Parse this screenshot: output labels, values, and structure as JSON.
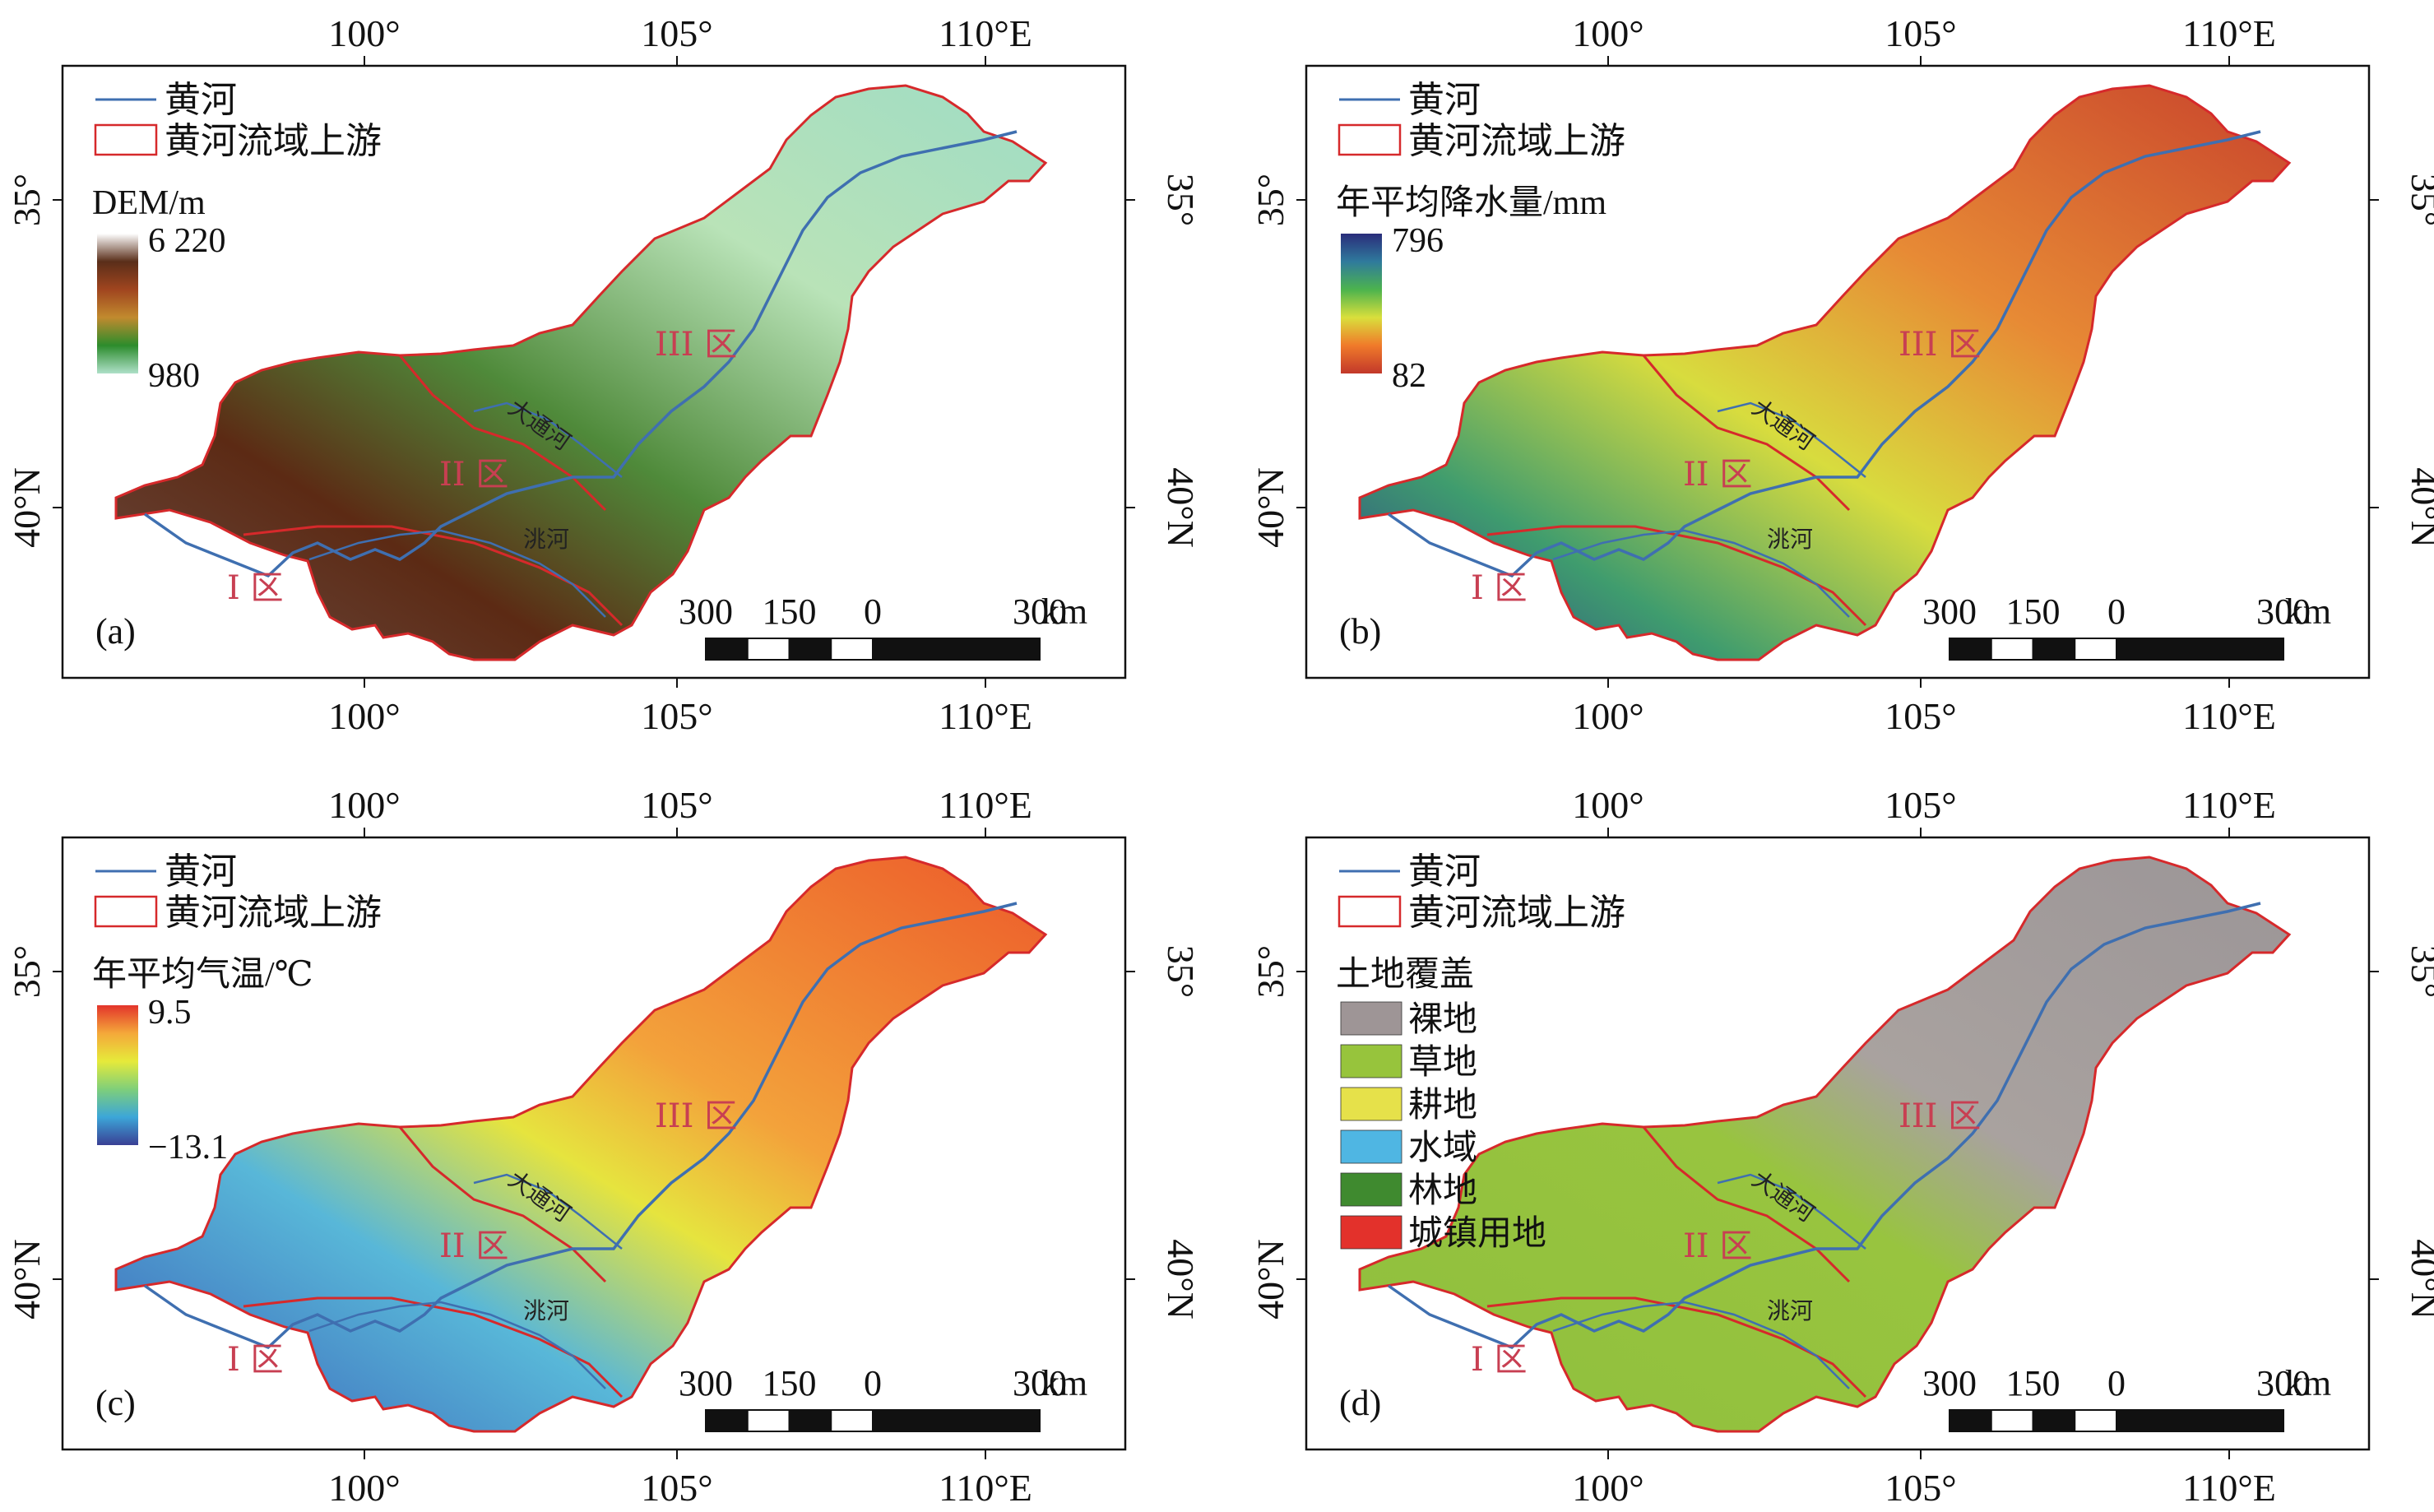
{
  "figure": {
    "axes": {
      "x_ticks": [
        "100°",
        "105°",
        "110°E"
      ],
      "y_ticks": [
        "35°",
        "40°N"
      ]
    },
    "panels": [
      {
        "id": "a",
        "label": "(a)",
        "legend": {
          "river": "黄河",
          "basin": "黄河流域上游"
        },
        "colorbar": {
          "title": "DEM/m",
          "max": "6 220",
          "min": "980",
          "colors": [
            "#ffffff",
            "#5a2e19",
            "#a0451f",
            "#c18a2e",
            "#2c8c2c",
            "#aee0c8"
          ]
        },
        "regions": [
          "I 区",
          "II 区",
          "III 区"
        ],
        "rivers": [
          "大通河",
          "洮河"
        ],
        "scale": {
          "labels": [
            "300",
            "150",
            "0",
            "300"
          ],
          "unit": "km"
        }
      },
      {
        "id": "b",
        "label": "(b)",
        "legend": {
          "river": "黄河",
          "basin": "黄河流域上游"
        },
        "colorbar": {
          "title": "年平均降水量/mm",
          "max": "796",
          "min": "82",
          "colors": [
            "#2a2d7a",
            "#2f7a9c",
            "#4cb34e",
            "#d9df3c",
            "#f07a2a",
            "#c2382a"
          ]
        },
        "regions": [
          "I 区",
          "II 区",
          "III 区"
        ],
        "rivers": [
          "大通河",
          "洮河"
        ],
        "scale": {
          "labels": [
            "300",
            "150",
            "0",
            "300"
          ],
          "unit": "km"
        }
      },
      {
        "id": "c",
        "label": "(c)",
        "legend": {
          "river": "黄河",
          "basin": "黄河流域上游"
        },
        "colorbar": {
          "title": "年平均气温/℃",
          "max": "9.5",
          "min": "−13.1",
          "colors": [
            "#e3342b",
            "#f4a83a",
            "#e6ea3a",
            "#7fcf7a",
            "#3ca6d8",
            "#3a3f94"
          ]
        },
        "regions": [
          "I 区",
          "II 区",
          "III 区"
        ],
        "rivers": [
          "大通河",
          "洮河"
        ],
        "scale": {
          "labels": [
            "300",
            "150",
            "0",
            "300"
          ],
          "unit": "km"
        }
      },
      {
        "id": "d",
        "label": "(d)",
        "legend": {
          "river": "黄河",
          "basin": "黄河流域上游"
        },
        "categorical": {
          "title": "土地覆盖",
          "items": [
            {
              "label": "裸地",
              "color": "#9e9596"
            },
            {
              "label": "草地",
              "color": "#97c43c"
            },
            {
              "label": "耕地",
              "color": "#e6e14a"
            },
            {
              "label": "水域",
              "color": "#4fb6e3"
            },
            {
              "label": "林地",
              "color": "#3f8a2f"
            },
            {
              "label": "城镇用地",
              "color": "#e3312b"
            }
          ]
        },
        "regions": [
          "I 区",
          "II 区",
          "III 区"
        ],
        "rivers": [
          "大通河",
          "洮河"
        ],
        "scale": {
          "labels": [
            "300",
            "150",
            "0",
            "300"
          ],
          "unit": "km"
        }
      }
    ],
    "colors": {
      "river": "#3f6fb0",
      "basin_outline": "#d6292b",
      "region_label": "#c83f52"
    }
  }
}
